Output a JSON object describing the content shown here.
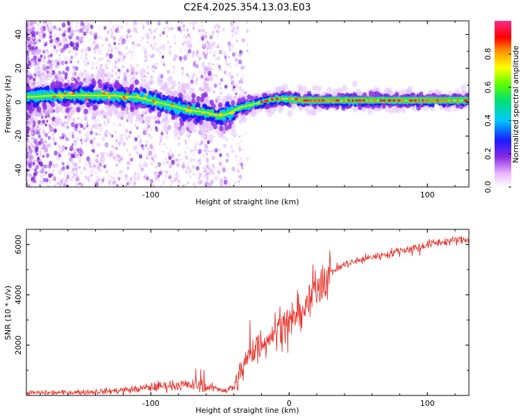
{
  "title": "C2E4.2025.354.13.03.E03",
  "colors": {
    "snr_line": "#e8302a",
    "ridge_core": "#ff2020",
    "axes": "#000000"
  },
  "chart_data": [
    {
      "type": "heatmap",
      "xlabel": "Height of straight line (km)",
      "ylabel": "Frequency (Hz)",
      "xlim": [
        -190,
        130
      ],
      "ylim": [
        -50,
        48
      ],
      "xticks": [
        -100,
        0,
        100
      ],
      "xtick_labels": [
        "-100",
        "",
        "100"
      ],
      "yticks": [
        -40,
        -20,
        0,
        20,
        40
      ],
      "ytick_labels": [
        "-40",
        "-20",
        "0",
        "20",
        "40"
      ],
      "colorbar": {
        "label": "Normalized spectral amplitude",
        "range": [
          0,
          1
        ],
        "ticks": [
          0,
          0.2,
          0.4,
          0.6,
          0.8
        ],
        "tick_labels": [
          "0.0",
          "0.2",
          "0.4",
          "0.6",
          "0.8"
        ],
        "colormap": "rainbow (white-violet-blue-cyan-green-yellow-red-magenta)"
      },
      "ridge": {
        "x": [
          -190,
          -170,
          -150,
          -130,
          -110,
          -100,
          -90,
          -80,
          -70,
          -60,
          -50,
          -45,
          -40,
          -35,
          -30,
          -25,
          -20,
          -15,
          -10,
          -5,
          0,
          5,
          10,
          20,
          40,
          60,
          80,
          100,
          130
        ],
        "y": [
          3,
          4,
          4,
          4,
          3,
          1,
          -1,
          -3,
          -5,
          -6,
          -8,
          -7,
          -5,
          -3,
          -2,
          -1,
          0,
          1,
          2,
          2,
          2,
          2,
          1,
          1,
          1,
          1,
          1,
          1,
          1
        ]
      }
    },
    {
      "type": "line",
      "xlabel": "Height of straight line (km)",
      "ylabel": "SNR (10 * v/v)",
      "xlim": [
        -190,
        130
      ],
      "ylim": [
        0,
        6600
      ],
      "xticks": [
        -100,
        0,
        100
      ],
      "xtick_labels": [
        "-100",
        "0",
        "100"
      ],
      "yticks": [
        2000,
        4000,
        6000
      ],
      "ytick_labels": [
        "2000",
        "4000",
        "6000"
      ],
      "series": [
        {
          "name": "SNR",
          "x": [
            -190,
            -170,
            -150,
            -130,
            -110,
            -100,
            -90,
            -80,
            -70,
            -65,
            -60,
            -55,
            -50,
            -45,
            -40,
            -35,
            -30,
            -25,
            -20,
            -15,
            -10,
            -5,
            0,
            5,
            10,
            15,
            20,
            30,
            40,
            50,
            60,
            70,
            80,
            90,
            100,
            110,
            120,
            130
          ],
          "values": [
            100,
            110,
            130,
            170,
            250,
            330,
            380,
            420,
            400,
            380,
            320,
            300,
            250,
            200,
            350,
            900,
            1500,
            1900,
            2100,
            2300,
            2600,
            2700,
            2900,
            3100,
            3400,
            3700,
            4400,
            4900,
            5200,
            5350,
            5500,
            5600,
            5750,
            5850,
            6000,
            6100,
            6150,
            6200
          ]
        }
      ]
    }
  ]
}
